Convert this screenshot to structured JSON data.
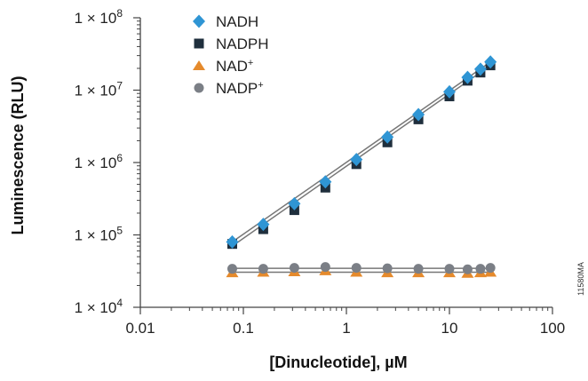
{
  "chart_data": {
    "type": "scatter",
    "xlabel": "[Dinucleotide], µM",
    "ylabel": "Luminescence (RLU)",
    "x_scale": "log",
    "y_scale": "log",
    "xlim": [
      0.01,
      100
    ],
    "ylim": [
      10000,
      100000000
    ],
    "x_ticks": [
      {
        "value": 0.01,
        "label": "0.01"
      },
      {
        "value": 0.1,
        "label": "0.1"
      },
      {
        "value": 1,
        "label": "1"
      },
      {
        "value": 10,
        "label": "10"
      },
      {
        "value": 100,
        "label": "100"
      }
    ],
    "y_ticks": [
      {
        "value": 10000,
        "base": "1 × 10",
        "exp": "4"
      },
      {
        "value": 100000,
        "base": "1 × 10",
        "exp": "5"
      },
      {
        "value": 1000000,
        "base": "1 × 10",
        "exp": "6"
      },
      {
        "value": 10000000,
        "base": "1 × 10",
        "exp": "7"
      },
      {
        "value": 100000000,
        "base": "1 × 10",
        "exp": "8"
      }
    ],
    "grid": false,
    "legend_position": "top-left",
    "series": [
      {
        "name": "NADH",
        "marker": "diamond",
        "color": "#2f95d4",
        "x": [
          0.078,
          0.156,
          0.3125,
          0.625,
          1.25,
          2.5,
          5,
          10,
          15,
          20,
          25
        ],
        "y": [
          80000,
          140000,
          270000,
          540000,
          1100000,
          2250000,
          4600000,
          9500000,
          15000000,
          19500000,
          24500000
        ]
      },
      {
        "name": "NADPH",
        "marker": "square",
        "color": "#1f2f3d",
        "x": [
          0.078,
          0.156,
          0.3125,
          0.625,
          1.25,
          2.5,
          5,
          10,
          15,
          20,
          25
        ],
        "y": [
          75000,
          120000,
          220000,
          450000,
          950000,
          1900000,
          3950000,
          8200000,
          13500000,
          17500000,
          22000000
        ]
      },
      {
        "name": "NAD+",
        "name_base": "NAD",
        "name_sup": "+",
        "marker": "triangle",
        "color": "#e58a2c",
        "x": [
          0.078,
          0.156,
          0.3125,
          0.625,
          1.25,
          2.5,
          5,
          10,
          15,
          20,
          25
        ],
        "y": [
          30000,
          30500,
          31000,
          32000,
          30500,
          30000,
          30000,
          30000,
          29500,
          30000,
          30500
        ]
      },
      {
        "name": "NADP+",
        "name_base": "NADP",
        "name_sup": "+",
        "marker": "circle",
        "color": "#7b7f86",
        "x": [
          0.078,
          0.156,
          0.3125,
          0.625,
          1.25,
          2.5,
          5,
          10,
          15,
          20,
          25
        ],
        "y": [
          34000,
          34000,
          35000,
          36000,
          35000,
          34500,
          34000,
          34000,
          33500,
          34000,
          35000
        ]
      }
    ],
    "fit_lines": [
      {
        "series": "NADH",
        "x": [
          0.078,
          25
        ],
        "y": [
          80000,
          24500000
        ]
      },
      {
        "series": "NADPH",
        "x": [
          0.078,
          25
        ],
        "y": [
          70000,
          22000000
        ]
      },
      {
        "series": "NAD+",
        "x": [
          0.078,
          25
        ],
        "y": [
          30500,
          30500
        ]
      },
      {
        "series": "NADP+",
        "x": [
          0.078,
          25
        ],
        "y": [
          34500,
          34500
        ]
      }
    ],
    "line_color": "#777777",
    "side_id": "11580MA"
  }
}
